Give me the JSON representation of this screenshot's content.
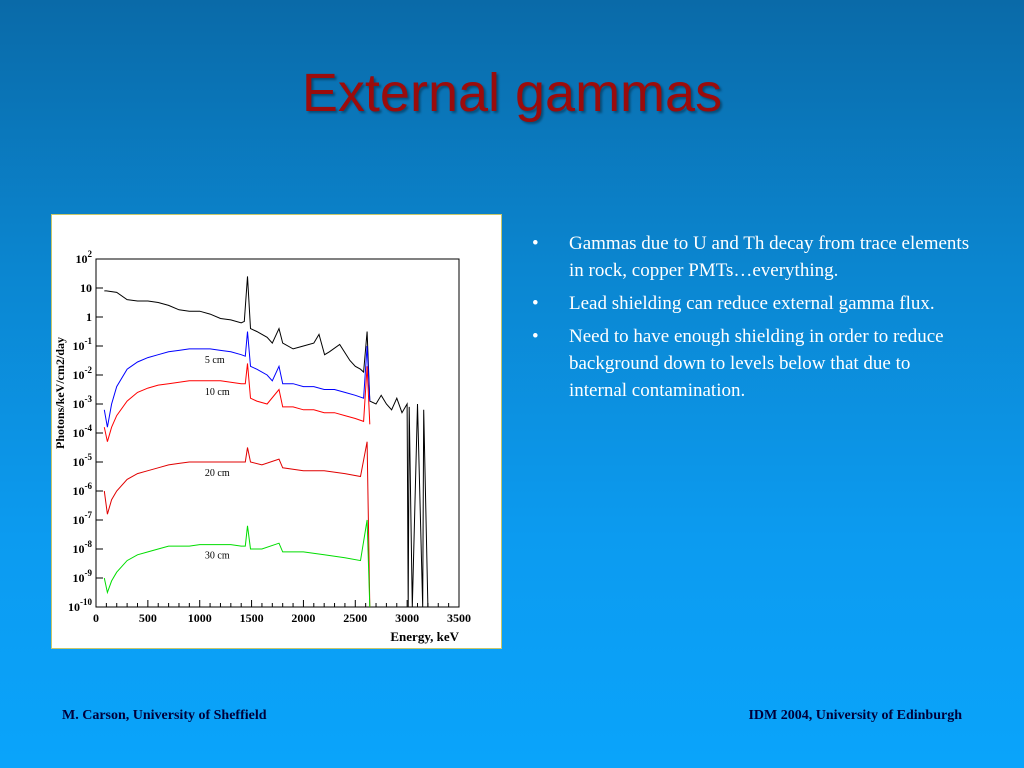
{
  "slide": {
    "title": "External gammas",
    "bullets": [
      "Gammas due to U and Th decay from trace elements in rock, copper PMTs…everything.",
      "Lead shielding can reduce external gamma flux.",
      "Need to have enough shielding in order to reduce background down to levels below that due to internal contamination."
    ],
    "bullet_symbol": "•",
    "footer_left": "M. Carson, University of Sheffield",
    "footer_right": "IDM 2004, University of Edinburgh",
    "colors": {
      "title": "#9b0c0c",
      "bullet_text": "#ffffff",
      "footer_text": "#00003a"
    }
  },
  "chart_data": {
    "type": "line",
    "xlabel": "Energy, keV",
    "ylabel": "Photons/keV/cm2/day",
    "xlim": [
      0,
      3500
    ],
    "ylim_log10": [
      -10,
      2
    ],
    "log_y": true,
    "x_ticks": [
      "0",
      "500",
      "1000",
      "1500",
      "2000",
      "2500",
      "3000",
      "3500"
    ],
    "y_ticks": [
      {
        "base": "10",
        "exp": "2"
      },
      {
        "base": "10",
        "exp": ""
      },
      {
        "base": "1",
        "exp": ""
      },
      {
        "base": "10",
        "exp": "-1"
      },
      {
        "base": "10",
        "exp": "-2"
      },
      {
        "base": "10",
        "exp": "-3"
      },
      {
        "base": "10",
        "exp": "-4"
      },
      {
        "base": "10",
        "exp": "-5"
      },
      {
        "base": "10",
        "exp": "-6"
      },
      {
        "base": "10",
        "exp": "-7"
      },
      {
        "base": "10",
        "exp": "-8"
      },
      {
        "base": "10",
        "exp": "-9"
      },
      {
        "base": "10",
        "exp": "-10"
      }
    ],
    "series": [
      {
        "color": "#000000",
        "x": [
          80,
          100,
          200,
          300,
          400,
          500,
          600,
          700,
          800,
          900,
          1000,
          1100,
          1200,
          1300,
          1400,
          1430,
          1461,
          1490,
          1550,
          1650,
          1700,
          1764,
          1800,
          1900,
          2000,
          2100,
          2150,
          2204,
          2250,
          2350,
          2448,
          2500,
          2550,
          2580,
          2614,
          2640,
          2700,
          2750,
          2800,
          2850,
          2900,
          2950,
          3000,
          3010,
          3020,
          3050,
          3100,
          3150,
          3160,
          3200
        ],
        "log10_y": [
          0.9,
          0.9,
          0.85,
          0.6,
          0.55,
          0.55,
          0.5,
          0.4,
          0.25,
          0.2,
          0.2,
          0.1,
          -0.05,
          -0.1,
          -0.2,
          -0.15,
          1.4,
          -0.4,
          -0.5,
          -0.7,
          -0.9,
          -0.4,
          -0.9,
          -1.1,
          -1.0,
          -0.9,
          -0.6,
          -1.3,
          -1.2,
          -0.95,
          -1.5,
          -1.7,
          -1.8,
          -1.9,
          -0.5,
          -2.9,
          -3.0,
          -2.7,
          -3.0,
          -3.2,
          -2.8,
          -3.3,
          -3.0,
          -10,
          -3.1,
          -10,
          -3.0,
          -10,
          -3.2,
          -10
        ]
      },
      {
        "name": "5 cm",
        "color": "#0000ff",
        "x": [
          80,
          110,
          150,
          200,
          300,
          400,
          500,
          600,
          700,
          800,
          900,
          1000,
          1100,
          1200,
          1300,
          1400,
          1440,
          1461,
          1490,
          1550,
          1650,
          1700,
          1764,
          1800,
          1900,
          2000,
          2100,
          2200,
          2300,
          2400,
          2500,
          2580,
          2614,
          2640
        ],
        "log10_y": [
          -3.2,
          -3.8,
          -3.0,
          -2.4,
          -1.8,
          -1.55,
          -1.4,
          -1.3,
          -1.2,
          -1.15,
          -1.1,
          -1.1,
          -1.1,
          -1.15,
          -1.2,
          -1.3,
          -1.35,
          -0.5,
          -1.7,
          -1.8,
          -2.0,
          -2.2,
          -1.7,
          -2.3,
          -2.3,
          -2.4,
          -2.4,
          -2.5,
          -2.5,
          -2.6,
          -2.7,
          -2.8,
          -1.0,
          -2.9
        ]
      },
      {
        "name": "10 cm",
        "color": "#ff0000",
        "x": [
          80,
          110,
          150,
          200,
          300,
          400,
          500,
          600,
          700,
          800,
          900,
          1000,
          1100,
          1200,
          1300,
          1400,
          1440,
          1461,
          1490,
          1550,
          1650,
          1764,
          1800,
          1900,
          2000,
          2100,
          2200,
          2300,
          2400,
          2500,
          2580,
          2614,
          2640
        ],
        "log10_y": [
          -3.8,
          -4.3,
          -3.8,
          -3.4,
          -2.9,
          -2.6,
          -2.45,
          -2.35,
          -2.3,
          -2.25,
          -2.2,
          -2.2,
          -2.2,
          -2.2,
          -2.25,
          -2.3,
          -2.3,
          -1.6,
          -2.8,
          -2.9,
          -3.0,
          -2.5,
          -3.1,
          -3.1,
          -3.2,
          -3.2,
          -3.3,
          -3.3,
          -3.4,
          -3.5,
          -3.6,
          -1.7,
          -3.7
        ]
      },
      {
        "name": "20 cm",
        "color": "#e00000",
        "x": [
          80,
          110,
          150,
          200,
          300,
          400,
          500,
          600,
          700,
          800,
          900,
          1000,
          1100,
          1200,
          1300,
          1400,
          1440,
          1461,
          1490,
          1600,
          1764,
          1800,
          2000,
          2200,
          2400,
          2550,
          2614,
          2640
        ],
        "log10_y": [
          -6.0,
          -6.8,
          -6.3,
          -6.0,
          -5.6,
          -5.4,
          -5.3,
          -5.2,
          -5.1,
          -5.05,
          -5.0,
          -5.0,
          -5.0,
          -5.0,
          -5.0,
          -5.0,
          -5.0,
          -4.5,
          -5.0,
          -5.1,
          -4.9,
          -5.2,
          -5.3,
          -5.3,
          -5.4,
          -5.5,
          -4.3,
          -10
        ]
      },
      {
        "name": "30 cm",
        "color": "#00dd00",
        "x": [
          80,
          110,
          150,
          200,
          300,
          400,
          500,
          600,
          700,
          800,
          900,
          1000,
          1100,
          1200,
          1300,
          1400,
          1440,
          1461,
          1490,
          1600,
          1764,
          1800,
          2000,
          2200,
          2400,
          2550,
          2614,
          2640
        ],
        "log10_y": [
          -9.0,
          -9.5,
          -9.1,
          -8.8,
          -8.4,
          -8.2,
          -8.1,
          -8.0,
          -7.9,
          -7.9,
          -7.9,
          -7.85,
          -7.85,
          -7.85,
          -7.85,
          -7.9,
          -7.9,
          -7.2,
          -8.0,
          -8.0,
          -7.8,
          -8.1,
          -8.1,
          -8.2,
          -8.3,
          -8.4,
          -7.0,
          -10
        ]
      }
    ]
  }
}
